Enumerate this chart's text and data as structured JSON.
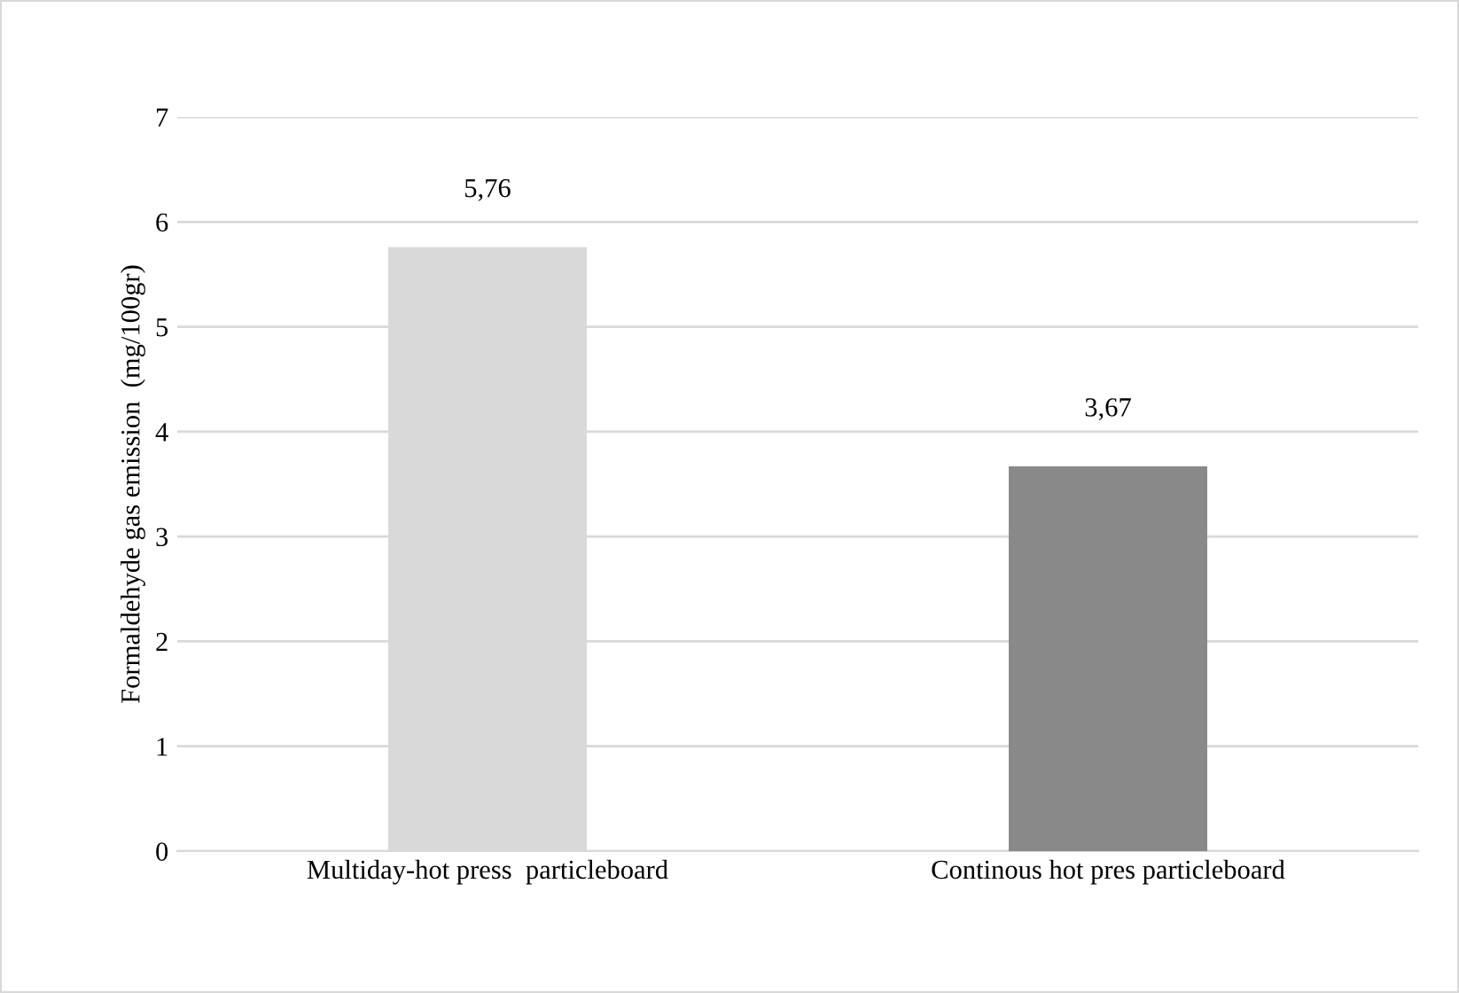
{
  "chart_data": {
    "type": "bar",
    "ylabel": "Formaldehyde gas emission  (mg/100gr)",
    "categories": [
      "Multiday-hot press  particleboard",
      "Continous hot pres particleboard"
    ],
    "values": [
      5.76,
      3.67
    ],
    "colors": [
      "#d9d9d9",
      "#898989"
    ],
    "value_labels": [
      "5,76",
      "3,67"
    ],
    "ylim": [
      0,
      7
    ],
    "yticks": [
      0,
      1,
      2,
      3,
      4,
      5,
      6,
      7
    ],
    "grid": "y",
    "legend": false
  }
}
